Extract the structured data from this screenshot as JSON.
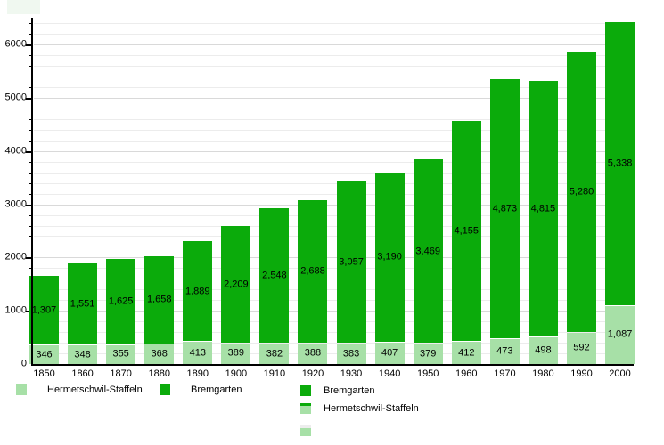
{
  "chart_data": {
    "type": "bar",
    "stacked": true,
    "title": "",
    "xlabel": "",
    "ylabel": "",
    "categories": [
      "1850",
      "1860",
      "1870",
      "1880",
      "1890",
      "1900",
      "1910",
      "1920",
      "1930",
      "1940",
      "1950",
      "1960",
      "1970",
      "1980",
      "1990",
      "2000"
    ],
    "series": [
      {
        "name": "Hermetschwil-Staffeln",
        "color": "#a7e0a7",
        "values": [
          346,
          348,
          355,
          368,
          413,
          389,
          382,
          388,
          383,
          407,
          379,
          412,
          473,
          498,
          592,
          1087
        ]
      },
      {
        "name": "Bremgarten",
        "color": "#0bab0b",
        "values": [
          1307,
          1551,
          1625,
          1658,
          1889,
          2209,
          2548,
          2688,
          3057,
          3190,
          3469,
          4155,
          4873,
          4815,
          5280,
          5338
        ]
      }
    ],
    "ylim": [
      0,
      6500
    ],
    "y_major_ticks": [
      0,
      1000,
      2000,
      3000,
      4000,
      5000,
      6000
    ],
    "y_minor_step": 200,
    "grid": true,
    "legend_position": "bottom"
  },
  "legend_bottom": {
    "items": [
      {
        "label": "Hermetschwil-Staffeln",
        "swatch": "light"
      },
      {
        "label": "Bremgarten",
        "swatch": "dark"
      }
    ]
  },
  "legend_right": {
    "items": [
      {
        "label": "Bremgarten",
        "swatch": "solid-dark"
      },
      {
        "label": "Hermetschwil-Staffeln",
        "swatch": "light-dark-top"
      },
      {
        "label": "",
        "swatch": "light-pale-top"
      }
    ]
  },
  "colors": {
    "bremgarten_green": "#0bab0b",
    "hermetschwil_green": "#a7e0a7",
    "grid_minor": "#ececec",
    "grid_major": "#d9d9d9",
    "axis": "#000000"
  }
}
